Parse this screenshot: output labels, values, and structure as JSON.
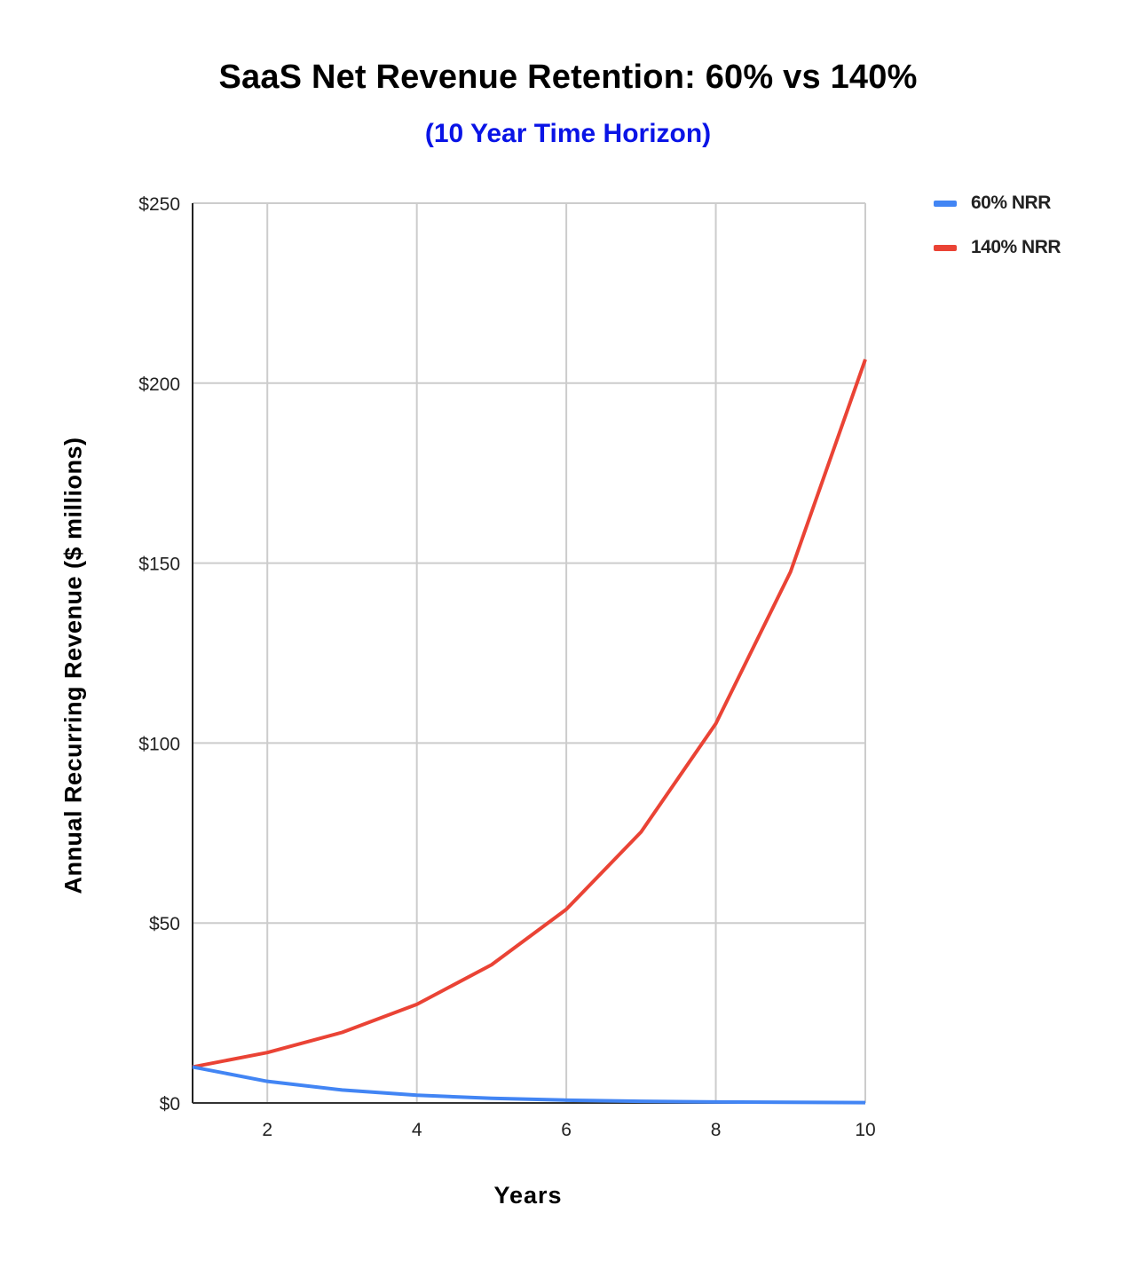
{
  "chart_data": {
    "type": "line",
    "title": "SaaS Net Revenue Retention: 60% vs 140%",
    "subtitle": "(10 Year Time Horizon)",
    "xlabel": "Years",
    "ylabel": "Annual Recurring Revenue ($ millions)",
    "x": [
      1,
      2,
      3,
      4,
      5,
      6,
      7,
      8,
      9,
      10
    ],
    "xlim": [
      1,
      10
    ],
    "ylim": [
      0,
      250
    ],
    "x_ticks": [
      2,
      4,
      6,
      8,
      10
    ],
    "y_ticks": [
      0,
      50,
      100,
      150,
      200,
      250
    ],
    "y_tick_labels": [
      "$0",
      "$50",
      "$100",
      "$150",
      "$200",
      "$250"
    ],
    "grid": true,
    "legend_position": "right",
    "series": [
      {
        "name": "60% NRR",
        "color": "#4285f4",
        "values": [
          10,
          6,
          3.6,
          2.16,
          1.3,
          0.78,
          0.47,
          0.28,
          0.17,
          0.1
        ]
      },
      {
        "name": "140% NRR",
        "color": "#ea4335",
        "values": [
          10,
          14,
          19.6,
          27.4,
          38.4,
          53.8,
          75.3,
          105.4,
          147.6,
          206.6
        ]
      }
    ]
  },
  "title_color": "#000000",
  "subtitle_color": "#0a14e6"
}
